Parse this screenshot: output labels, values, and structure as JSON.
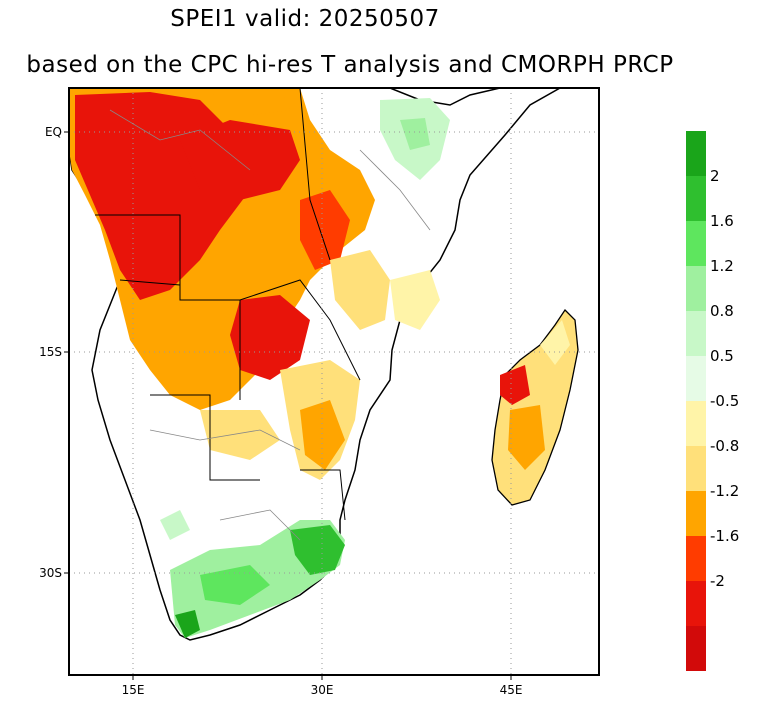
{
  "title": {
    "line1": "SPEI1  valid: 20250507",
    "line2": "based on the CPC hi-res T analysis and CMORPH PRCP"
  },
  "map": {
    "lon_labels": [
      "15E",
      "30E",
      "45E"
    ],
    "lat_labels": [
      "EQ",
      "15S",
      "30S"
    ],
    "grid": "dotted"
  },
  "colorbar": {
    "wet": [
      {
        "label": "",
        "color": "#1aa51a"
      },
      {
        "label": "2",
        "color": "#2fbf2f"
      },
      {
        "label": "1.6",
        "color": "#5ee65e"
      },
      {
        "label": "1.2",
        "color": "#9ff09f"
      },
      {
        "label": "0.8",
        "color": "#c8f8c8"
      },
      {
        "label": "0.5",
        "color": "#e6fbe6"
      }
    ],
    "dry": [
      {
        "label": "-0.5",
        "color": "#fff4a8"
      },
      {
        "label": "-0.8",
        "color": "#ffe07a"
      },
      {
        "label": "-1.2",
        "color": "#ffa500"
      },
      {
        "label": "-1.6",
        "color": "#ff3c00"
      },
      {
        "label": "-2",
        "color": "#e8140a"
      },
      {
        "label": "",
        "color": "#d20a0a"
      }
    ]
  }
}
